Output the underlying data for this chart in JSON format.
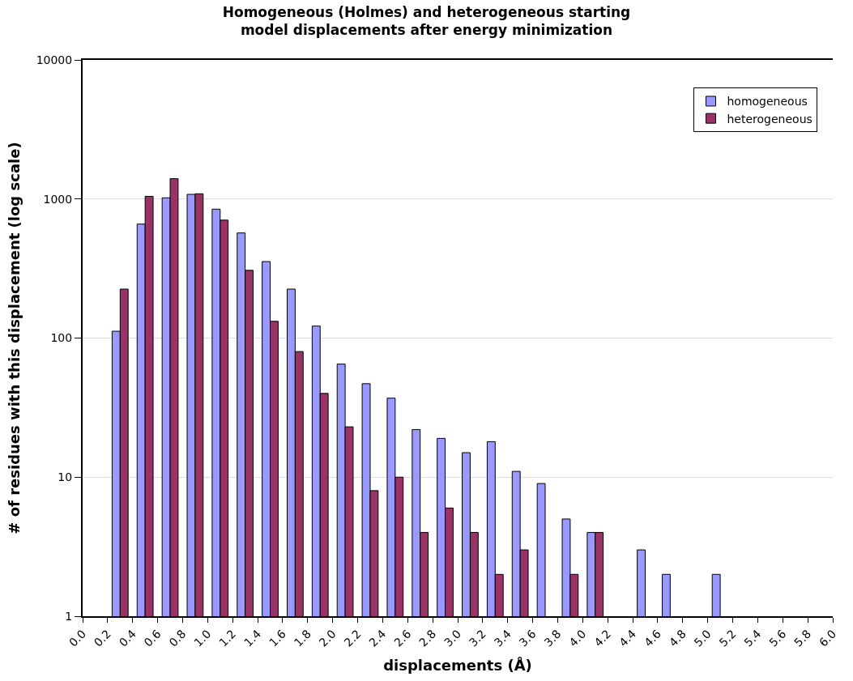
{
  "chart_data": {
    "type": "histogram",
    "title": "Homogeneous (Holmes) and heterogeneous starting\nmodel displacements after energy minimization",
    "xlabel": "displacements (Å)",
    "ylabel": "# of residues with this displacement (log scale)",
    "bins": [
      0.0,
      0.2,
      0.4,
      0.6,
      0.8,
      1.0,
      1.2,
      1.4,
      1.6,
      1.8,
      2.0,
      2.2,
      2.4,
      2.6,
      2.8,
      3.0,
      3.2,
      3.4,
      3.6,
      3.8,
      4.0,
      4.2,
      4.4,
      4.6,
      4.8,
      5.0,
      5.2,
      5.4,
      5.6,
      5.8,
      6.0
    ],
    "series": [
      {
        "name": "homogeneous",
        "color": "#9999ff",
        "values": [
          null,
          112,
          660,
          1020,
          1080,
          845,
          570,
          355,
          225,
          122,
          65,
          47,
          37,
          22,
          19,
          15,
          18,
          11,
          9,
          5,
          4,
          null,
          3,
          2,
          null,
          2,
          null,
          null,
          null,
          null
        ]
      },
      {
        "name": "heterogeneous",
        "color": "#993366",
        "values": [
          null,
          225,
          1045,
          1400,
          1090,
          705,
          307,
          132,
          80,
          40,
          23,
          8,
          10,
          4,
          6,
          4,
          2,
          3,
          null,
          2,
          4,
          null,
          null,
          null,
          null,
          null,
          null,
          null,
          null,
          null
        ]
      }
    ],
    "log": "y",
    "ylim": [
      1,
      10000
    ],
    "yticks": [
      1,
      10,
      100,
      1000,
      10000
    ],
    "xlim": [
      0.0,
      6.0
    ],
    "xticks": [
      {
        "value": 0.0,
        "label": "0.0"
      },
      0.2,
      0.4,
      0.6,
      0.8,
      {
        "value": 1.0,
        "label": "1.0"
      },
      1.2,
      1.4,
      1.6,
      1.8,
      {
        "value": 2.0,
        "label": "2.0"
      },
      2.2,
      2.4,
      2.6,
      2.8,
      {
        "value": 3.0,
        "label": "3.0"
      },
      3.2,
      3.4,
      3.6,
      3.8,
      {
        "value": 4.0,
        "label": "4.0"
      },
      4.2,
      4.4,
      4.6,
      4.8,
      {
        "value": 5.0,
        "label": "5.0"
      },
      5.2,
      5.4,
      5.6,
      5.8,
      {
        "value": 6.0,
        "label": "6.0"
      }
    ],
    "grid": "y",
    "legend": "top right"
  }
}
